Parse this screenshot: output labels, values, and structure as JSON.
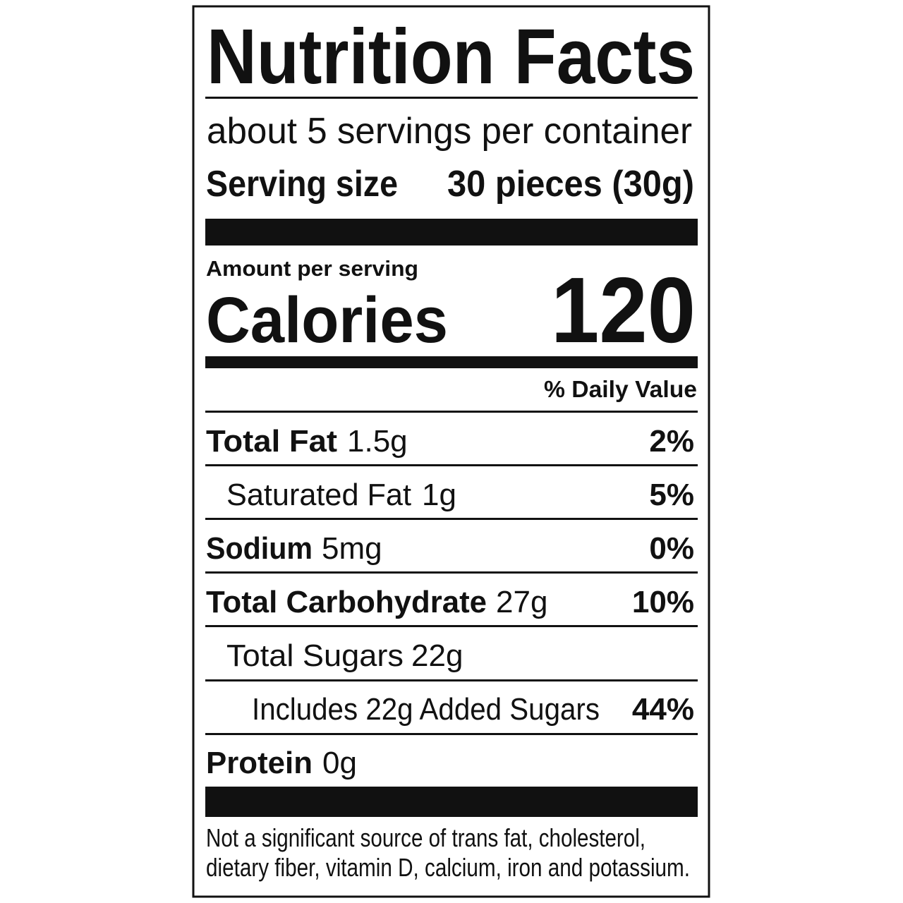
{
  "title": "Nutrition Facts",
  "servings": "about 5 servings per container",
  "serving_size": {
    "label": "Serving size",
    "value": "30 pieces (30g)"
  },
  "amount_per_serving": "Amount per serving",
  "calories": {
    "label": "Calories",
    "value": 120
  },
  "daily_value_header": "% Daily Value",
  "nutrients": [
    {
      "name": "Total Fat",
      "amount": "1.5g",
      "dv": "2%"
    },
    {
      "name": "Saturated Fat",
      "amount": "1g",
      "dv": "5%"
    },
    {
      "name": "Sodium",
      "amount": "5mg",
      "dv": "0%"
    },
    {
      "name": "Total Carbohydrate",
      "amount": "27g",
      "dv": "10%"
    },
    {
      "name": "Total Sugars",
      "amount": "22g"
    },
    {
      "name": "Includes 22g Added Sugars",
      "dv": "44%"
    },
    {
      "name": "Protein",
      "amount": "0g"
    }
  ],
  "footnote": [
    "Not a significant source of trans fat, cholesterol,",
    "dietary fiber, vitamin D, calcium, iron and potassium."
  ]
}
